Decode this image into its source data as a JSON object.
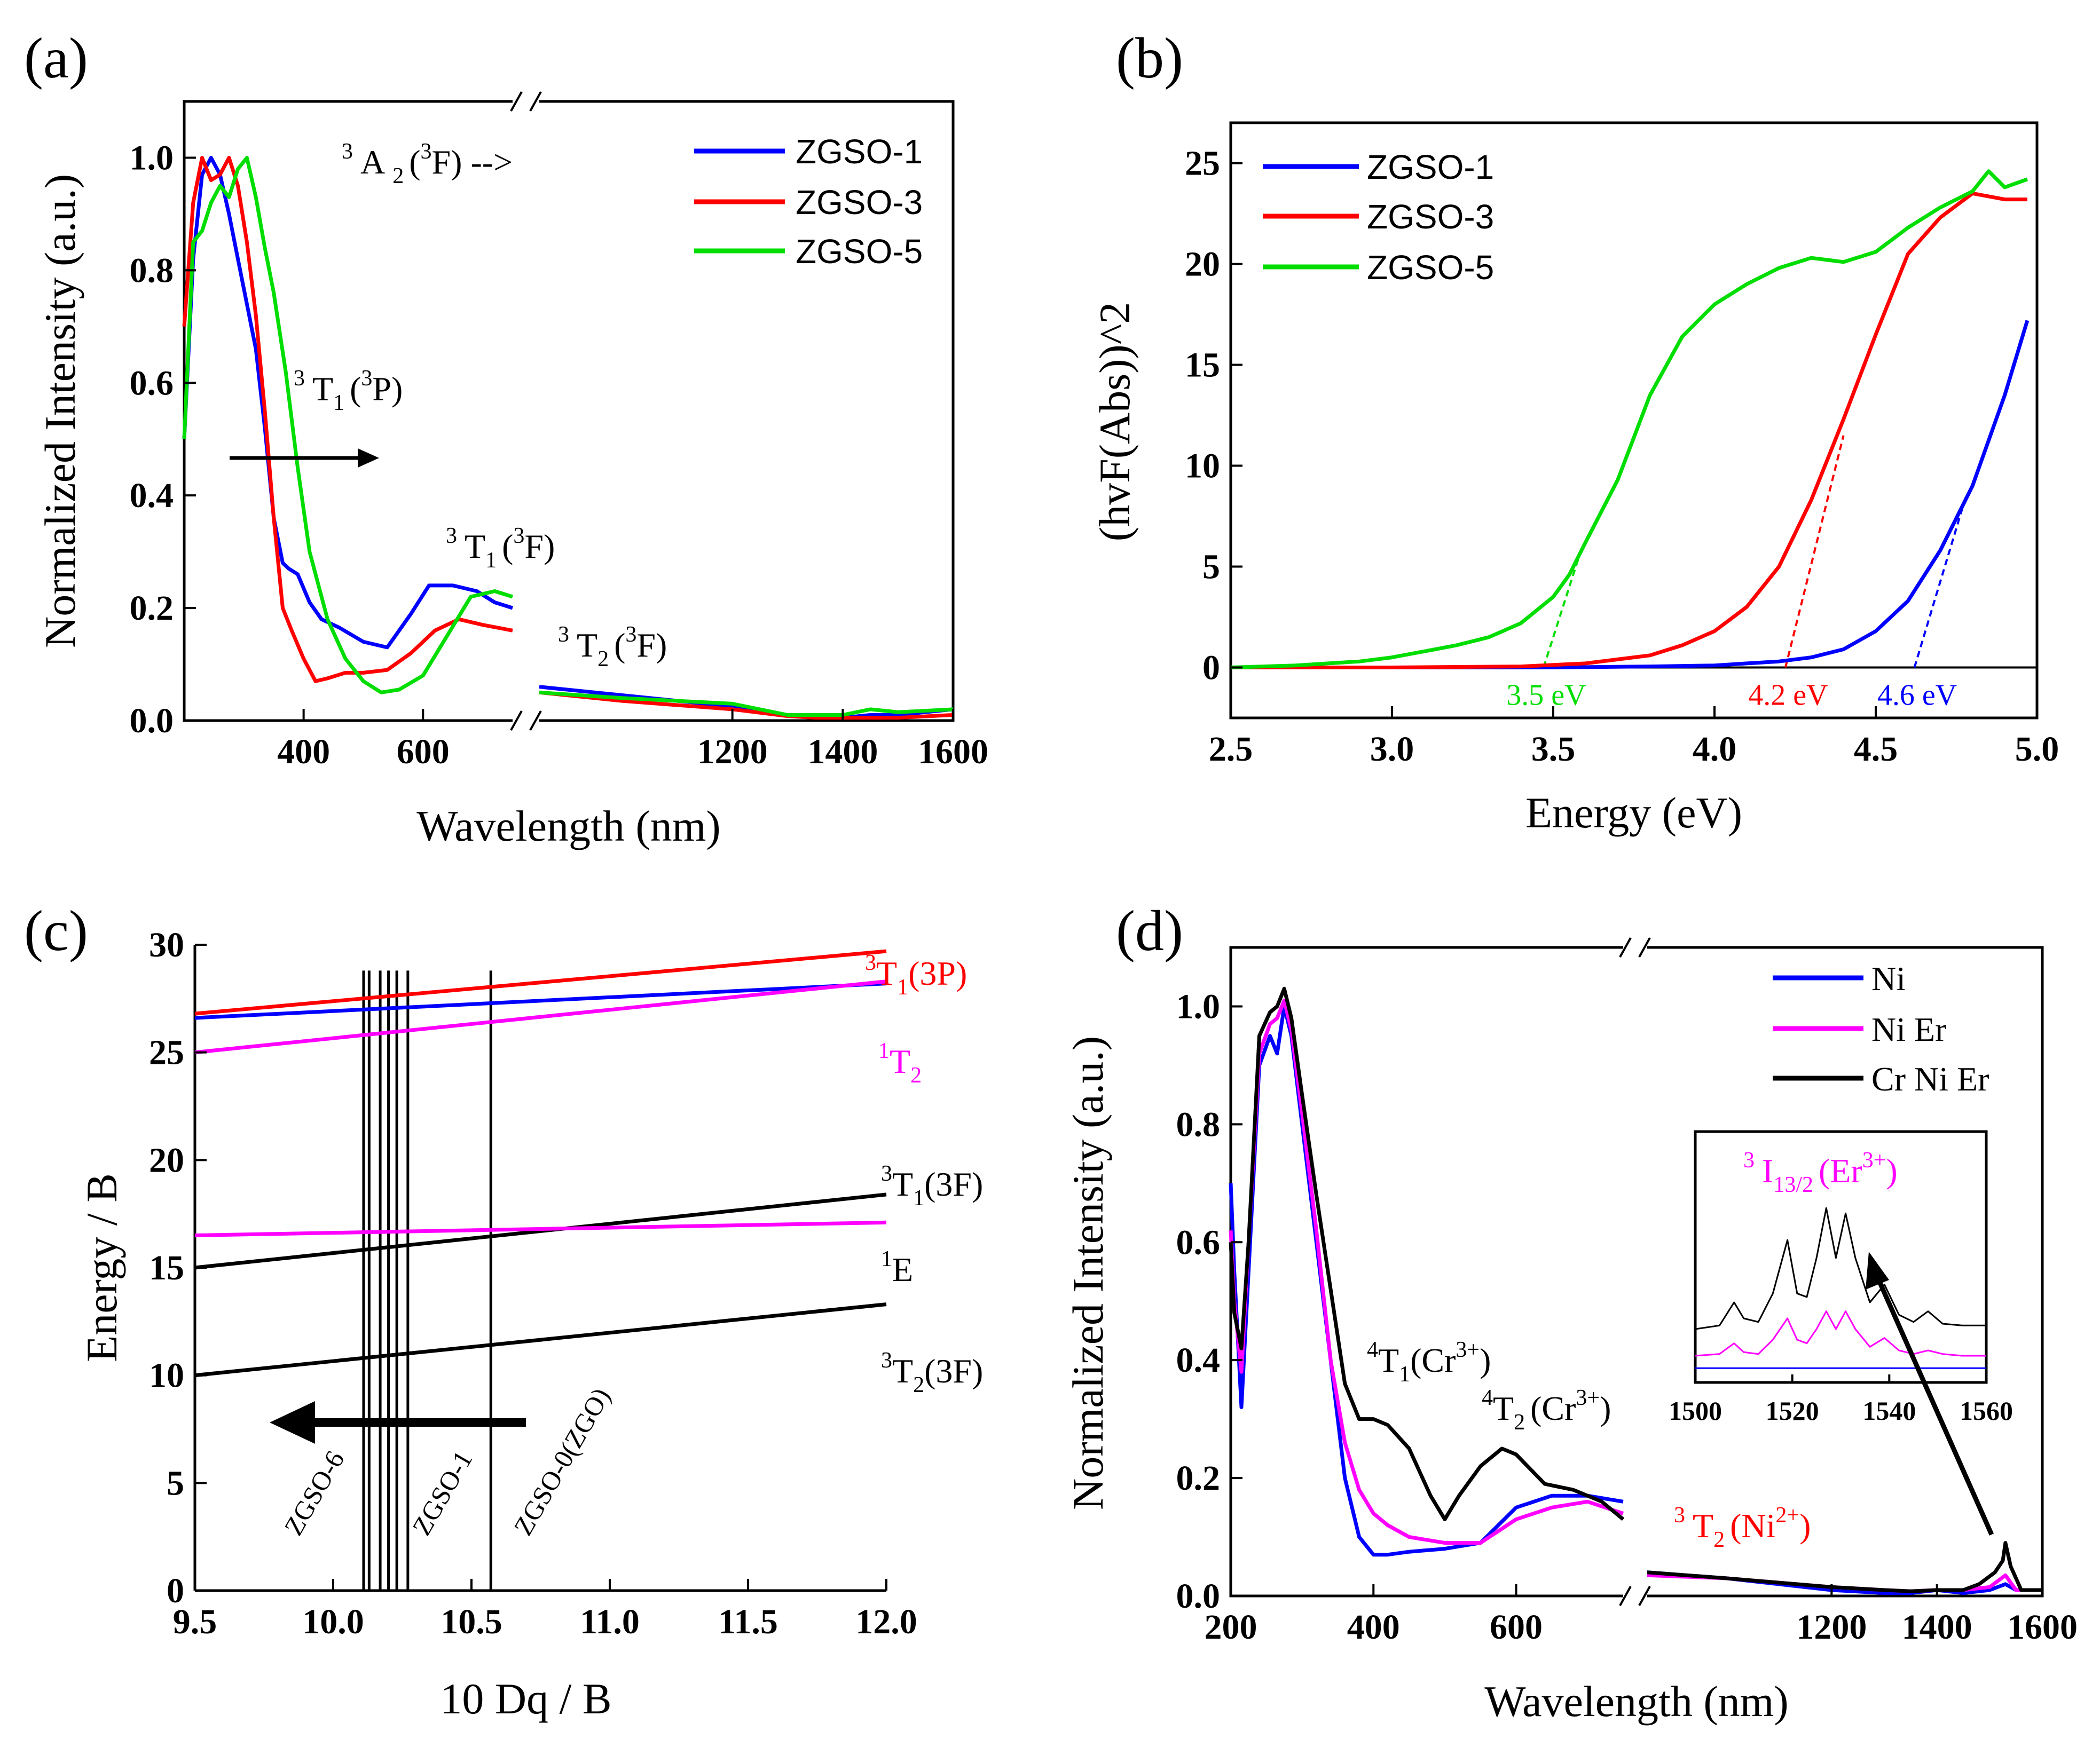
{
  "colors": {
    "blue": "#0000ff",
    "red": "#ff0000",
    "green": "#00dd00",
    "magenta": "#ff00ff",
    "black": "#000000"
  },
  "chart_data": [
    {
      "panel": "a",
      "panel_label": "(a)",
      "type": "line",
      "xlabel": "Wavelength (nm)",
      "ylabel": "Normalized Intensity (a.u.)",
      "xlim": [
        200,
        1600
      ],
      "x_break": [
        750,
        850
      ],
      "ylim": [
        0,
        1.1
      ],
      "xticks": [
        "400",
        "600",
        "1200",
        "1400",
        "1600"
      ],
      "xtick_values": [
        400,
        600,
        1200,
        1400,
        1600
      ],
      "yticks": [
        "0.0",
        "0.2",
        "0.4",
        "0.6",
        "0.8",
        "1.0"
      ],
      "legend": [
        "ZGSO-1",
        "ZGSO-3",
        "ZGSO-5"
      ],
      "annotations": {
        "a2": {
          "pre": "3",
          "main": "A",
          "sub": "2",
          "sup": "3",
          "tail": "F) -->"
        },
        "t1p": {
          "pre": "3",
          "main": "T",
          "sub": "1",
          "sup": "3",
          "tail": "P)"
        },
        "t1f": {
          "pre": "3",
          "main": "T",
          "sub": "1",
          "sup": "3",
          "tail": "F)"
        },
        "t2f": {
          "pre": "3",
          "main": "T",
          "sub": "2",
          "sup": "3",
          "tail": "F)"
        }
      },
      "series": [
        {
          "name": "ZGSO-1",
          "color": "#0000ff",
          "x": [
            200,
            215,
            230,
            245,
            260,
            275,
            290,
            305,
            320,
            335,
            350,
            365,
            375,
            390,
            410,
            430,
            460,
            500,
            540,
            580,
            610,
            650,
            690,
            720,
            750,
            850,
            1000,
            1200,
            1300,
            1350,
            1400,
            1450,
            1500,
            1600
          ],
          "y": [
            0.5,
            0.82,
            0.97,
            1.0,
            0.97,
            0.9,
            0.82,
            0.74,
            0.66,
            0.52,
            0.36,
            0.28,
            0.27,
            0.26,
            0.21,
            0.18,
            0.165,
            0.14,
            0.13,
            0.19,
            0.24,
            0.24,
            0.23,
            0.21,
            0.2,
            0.06,
            0.045,
            0.025,
            0.01,
            0.01,
            0.005,
            0.01,
            0.01,
            0.02
          ]
        },
        {
          "name": "ZGSO-3",
          "color": "#ff0000",
          "x": [
            200,
            215,
            230,
            245,
            260,
            275,
            290,
            305,
            320,
            335,
            350,
            365,
            380,
            400,
            420,
            440,
            470,
            500,
            540,
            580,
            620,
            660,
            700,
            750,
            850,
            1000,
            1200,
            1300,
            1350,
            1400,
            1450,
            1500,
            1600
          ],
          "y": [
            0.7,
            0.92,
            1.0,
            0.96,
            0.97,
            1.0,
            0.95,
            0.85,
            0.72,
            0.55,
            0.36,
            0.2,
            0.16,
            0.11,
            0.07,
            0.075,
            0.085,
            0.085,
            0.09,
            0.12,
            0.16,
            0.18,
            0.17,
            0.16,
            0.05,
            0.035,
            0.02,
            0.008,
            0.005,
            0.005,
            0.005,
            0.005,
            0.01
          ]
        },
        {
          "name": "ZGSO-5",
          "color": "#00dd00",
          "x": [
            200,
            215,
            230,
            245,
            260,
            275,
            290,
            305,
            320,
            335,
            350,
            370,
            390,
            410,
            440,
            470,
            500,
            530,
            560,
            600,
            640,
            680,
            720,
            750,
            850,
            1000,
            1200,
            1300,
            1350,
            1400,
            1450,
            1500,
            1600
          ],
          "y": [
            0.5,
            0.85,
            0.87,
            0.92,
            0.95,
            0.93,
            0.98,
            1.0,
            0.93,
            0.84,
            0.76,
            0.62,
            0.45,
            0.3,
            0.18,
            0.11,
            0.07,
            0.05,
            0.055,
            0.08,
            0.15,
            0.22,
            0.23,
            0.22,
            0.05,
            0.04,
            0.03,
            0.01,
            0.01,
            0.01,
            0.02,
            0.015,
            0.02
          ]
        }
      ]
    },
    {
      "panel": "b",
      "panel_label": "(b)",
      "type": "line",
      "xlabel": "Energy (eV)",
      "ylabel": "(hvF(Abs))^2",
      "xlim": [
        2.5,
        5.0
      ],
      "ylim": [
        -2.5,
        27
      ],
      "xticks": [
        "2.5",
        "3.0",
        "3.5",
        "4.0",
        "4.5",
        "5.0"
      ],
      "yticks": [
        "0",
        "5",
        "10",
        "15",
        "20",
        "25"
      ],
      "legend": [
        "ZGSO-1",
        "ZGSO-3",
        "ZGSO-5"
      ],
      "series": [
        {
          "name": "ZGSO-1",
          "color": "#0000ff",
          "x": [
            2.5,
            3.0,
            3.5,
            3.8,
            4.0,
            4.1,
            4.2,
            4.3,
            4.4,
            4.5,
            4.6,
            4.7,
            4.8,
            4.9,
            4.97
          ],
          "y": [
            0,
            0,
            0,
            0.05,
            0.1,
            0.2,
            0.3,
            0.5,
            0.9,
            1.8,
            3.3,
            5.8,
            9.0,
            13.5,
            17.2
          ]
        },
        {
          "name": "ZGSO-3",
          "color": "#ff0000",
          "x": [
            2.5,
            3.0,
            3.4,
            3.6,
            3.8,
            3.9,
            4.0,
            4.1,
            4.2,
            4.3,
            4.4,
            4.5,
            4.6,
            4.7,
            4.8,
            4.9,
            4.97
          ],
          "y": [
            0,
            0,
            0.05,
            0.2,
            0.6,
            1.1,
            1.8,
            3.0,
            5.0,
            8.3,
            12.3,
            16.5,
            20.5,
            22.3,
            23.5,
            23.2,
            23.2
          ]
        },
        {
          "name": "ZGSO-5",
          "color": "#00dd00",
          "x": [
            2.5,
            2.7,
            2.9,
            3.0,
            3.1,
            3.2,
            3.3,
            3.4,
            3.5,
            3.55,
            3.6,
            3.7,
            3.8,
            3.9,
            4.0,
            4.1,
            4.2,
            4.3,
            4.4,
            4.5,
            4.6,
            4.7,
            4.8,
            4.85,
            4.9,
            4.97
          ],
          "y": [
            0,
            0.1,
            0.3,
            0.5,
            0.8,
            1.1,
            1.5,
            2.2,
            3.5,
            4.6,
            6.2,
            9.3,
            13.5,
            16.4,
            18.0,
            19.0,
            19.8,
            20.3,
            20.1,
            20.6,
            21.8,
            22.8,
            23.6,
            24.6,
            23.8,
            24.2
          ]
        }
      ],
      "tangents": [
        {
          "label": "3.5 eV",
          "color": "#00dd00",
          "x": [
            3.47,
            3.58
          ],
          "y": [
            0,
            5.5
          ]
        },
        {
          "label": "4.2 eV",
          "color": "#ff0000",
          "x": [
            4.22,
            4.4
          ],
          "y": [
            0,
            11.5
          ]
        },
        {
          "label": "4.6 eV",
          "color": "#0000ff",
          "x": [
            4.62,
            4.78
          ],
          "y": [
            0,
            8.5
          ]
        }
      ]
    },
    {
      "panel": "c",
      "panel_label": "(c)",
      "type": "line",
      "xlabel": "10 Dq / B",
      "ylabel": "Energy / B",
      "xlim": [
        9.5,
        12.0
      ],
      "ylim": [
        0,
        30
      ],
      "xticks": [
        "9.5",
        "10.0",
        "10.5",
        "11.0",
        "11.5",
        "12.0"
      ],
      "yticks": [
        "0",
        "5",
        "10",
        "15",
        "20",
        "25",
        "30"
      ],
      "series": [
        {
          "name": "3T1(3P)",
          "color": "#ff0000",
          "x": [
            9.5,
            12.0
          ],
          "y": [
            26.8,
            29.7
          ]
        },
        {
          "name": "3T1(3P) lower",
          "color": "#0000ff",
          "x": [
            9.5,
            12.0
          ],
          "y": [
            26.6,
            28.2
          ]
        },
        {
          "name": "1T2",
          "color": "#ff00ff",
          "x": [
            9.5,
            12.0
          ],
          "y": [
            25.0,
            28.3
          ]
        },
        {
          "name": "3T1(3F)",
          "color": "#000000",
          "x": [
            9.5,
            12.0
          ],
          "y": [
            15.0,
            18.4
          ]
        },
        {
          "name": "1E",
          "color": "#ff00ff",
          "x": [
            9.5,
            12.0
          ],
          "y": [
            16.5,
            17.1
          ]
        },
        {
          "name": "3T2(3F)",
          "color": "#000000",
          "x": [
            9.5,
            12.0
          ],
          "y": [
            10.0,
            13.3
          ]
        }
      ],
      "vlines": [
        10.11,
        10.13,
        10.17,
        10.2,
        10.23,
        10.27,
        10.57
      ],
      "vline_top": 28.8,
      "level_labels": {
        "t1p": {
          "pre": "3",
          "main": "T",
          "sub": "1",
          "tail": "(3P)"
        },
        "t2": {
          "pre": "1",
          "main": "T",
          "sub": "2",
          "tail": ""
        },
        "t1f": {
          "pre": "3",
          "main": "T",
          "sub": "1",
          "tail": "(3F)"
        },
        "e": {
          "pre": "1",
          "main": "E",
          "sub": "",
          "tail": ""
        },
        "t2f": {
          "pre": "3",
          "main": "T",
          "sub": "2",
          "tail": "(3F)"
        }
      },
      "sample_labels": [
        "ZGSO-6",
        "ZGSO-1",
        "ZGSO-0(ZGO)"
      ]
    },
    {
      "panel": "d",
      "panel_label": "(d)",
      "type": "line",
      "xlabel": "Wavelength (nm)",
      "ylabel": "Normalized Intensity (a.u.)",
      "xlim": [
        200,
        1600
      ],
      "x_break": [
        750,
        850
      ],
      "ylim": [
        0,
        1.1
      ],
      "xticks": [
        "200",
        "400",
        "600",
        "1200",
        "1400",
        "1600"
      ],
      "xtick_values": [
        200,
        400,
        600,
        1200,
        1400,
        1600
      ],
      "yticks": [
        "0.0",
        "0.2",
        "0.4",
        "0.6",
        "0.8",
        "1.0"
      ],
      "legend": [
        "Ni",
        "Ni Er",
        "Cr Ni Er"
      ],
      "annotations": {
        "t1cr": {
          "pre": "4",
          "main": "T",
          "sub": "1",
          "sup": "3+",
          "tail": ")"
        },
        "t2cr": {
          "pre": "4",
          "main": "T",
          "sub": "2",
          "sup": "3+",
          "tail": ")"
        },
        "t2ni": {
          "pre": "3",
          "main": "T",
          "sub": "2",
          "sup": "2+",
          "tail": ")"
        },
        "i132": {
          "pre": "3",
          "main": "I",
          "sub": "13/2",
          "sup": "3+",
          "tail": ")"
        }
      },
      "series": [
        {
          "name": "Ni",
          "color": "#0000ff",
          "x": [
            200,
            205,
            215,
            225,
            240,
            255,
            265,
            275,
            285,
            300,
            320,
            340,
            360,
            380,
            400,
            420,
            450,
            500,
            550,
            600,
            650,
            700,
            750,
            850,
            1000,
            1200,
            1300,
            1350,
            1400,
            1450,
            1500,
            1530,
            1550,
            1600
          ],
          "y": [
            0.7,
            0.55,
            0.32,
            0.55,
            0.9,
            0.95,
            0.92,
            1.0,
            0.95,
            0.8,
            0.6,
            0.4,
            0.2,
            0.1,
            0.07,
            0.07,
            0.075,
            0.08,
            0.09,
            0.15,
            0.17,
            0.17,
            0.16,
            0.04,
            0.03,
            0.01,
            0.005,
            0.005,
            0.01,
            0.005,
            0.01,
            0.02,
            0.01,
            0.01
          ]
        },
        {
          "name": "Ni Er",
          "color": "#ff00ff",
          "x": [
            200,
            205,
            215,
            225,
            240,
            255,
            265,
            275,
            285,
            300,
            320,
            340,
            360,
            380,
            400,
            420,
            450,
            500,
            550,
            600,
            650,
            700,
            750,
            850,
            1000,
            1200,
            1300,
            1350,
            1400,
            1450,
            1500,
            1530,
            1550,
            1600
          ],
          "y": [
            0.62,
            0.5,
            0.38,
            0.6,
            0.92,
            0.97,
            0.98,
            1.01,
            0.96,
            0.82,
            0.62,
            0.4,
            0.26,
            0.18,
            0.14,
            0.12,
            0.1,
            0.09,
            0.09,
            0.13,
            0.15,
            0.16,
            0.14,
            0.035,
            0.03,
            0.015,
            0.01,
            0.008,
            0.01,
            0.01,
            0.015,
            0.035,
            0.01,
            0.01
          ]
        },
        {
          "name": "Cr Ni Er",
          "color": "#000000",
          "x": [
            200,
            205,
            215,
            225,
            240,
            255,
            265,
            275,
            285,
            300,
            320,
            340,
            360,
            380,
            400,
            420,
            450,
            480,
            500,
            520,
            550,
            580,
            600,
            640,
            680,
            720,
            750,
            850,
            1000,
            1200,
            1300,
            1350,
            1400,
            1450,
            1480,
            1510,
            1525,
            1530,
            1540,
            1550,
            1560,
            1600
          ],
          "y": [
            0.6,
            0.48,
            0.42,
            0.6,
            0.95,
            0.99,
            1.0,
            1.03,
            0.98,
            0.85,
            0.68,
            0.52,
            0.36,
            0.3,
            0.3,
            0.29,
            0.25,
            0.17,
            0.13,
            0.17,
            0.22,
            0.25,
            0.24,
            0.19,
            0.18,
            0.16,
            0.13,
            0.04,
            0.03,
            0.015,
            0.01,
            0.008,
            0.01,
            0.01,
            0.02,
            0.04,
            0.06,
            0.09,
            0.05,
            0.03,
            0.01,
            0.01
          ]
        }
      ],
      "inset": {
        "xlim": [
          1500,
          1560
        ],
        "xticks": [
          "1500",
          "1520",
          "1540",
          "1560"
        ],
        "series": [
          {
            "name": "Cr Ni Er",
            "color": "#000000",
            "x": [
              1500,
              1505,
              1508,
              1510,
              1513,
              1516,
              1519,
              1521,
              1523,
              1525,
              1527,
              1529,
              1531,
              1533,
              1536,
              1539,
              1542,
              1545,
              1548,
              1551,
              1555,
              1560
            ],
            "y": [
              0.3,
              0.32,
              0.45,
              0.36,
              0.34,
              0.5,
              0.8,
              0.5,
              0.48,
              0.7,
              0.98,
              0.7,
              0.95,
              0.7,
              0.45,
              0.55,
              0.38,
              0.34,
              0.4,
              0.33,
              0.32,
              0.32
            ]
          },
          {
            "name": "Ni Er",
            "color": "#ff00ff",
            "x": [
              1500,
              1505,
              1508,
              1510,
              1513,
              1516,
              1519,
              1521,
              1523,
              1525,
              1527,
              1529,
              1531,
              1533,
              1536,
              1539,
              1542,
              1545,
              1548,
              1551,
              1555,
              1560
            ],
            "y": [
              0.15,
              0.16,
              0.22,
              0.17,
              0.16,
              0.24,
              0.36,
              0.24,
              0.22,
              0.3,
              0.4,
              0.3,
              0.4,
              0.3,
              0.2,
              0.25,
              0.18,
              0.16,
              0.18,
              0.16,
              0.15,
              0.15
            ]
          },
          {
            "name": "Ni",
            "color": "#0000ff",
            "x": [
              1500,
              1560
            ],
            "y": [
              0.08,
              0.08
            ]
          }
        ]
      }
    }
  ]
}
